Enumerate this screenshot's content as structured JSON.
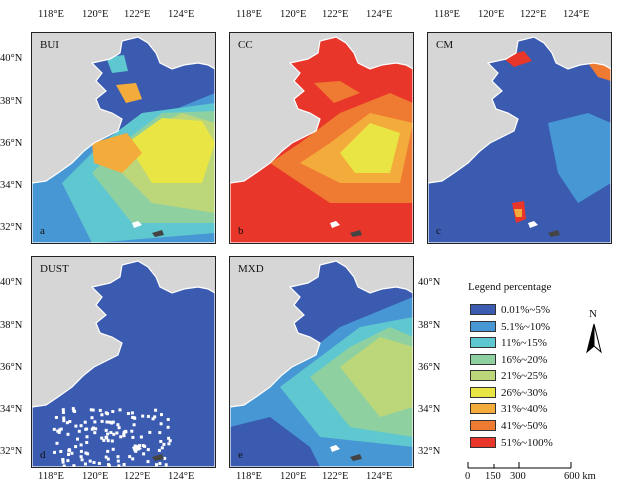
{
  "panels": [
    {
      "title": "BUI",
      "letter": "a",
      "scheme": "bui"
    },
    {
      "title": "CC",
      "letter": "b",
      "scheme": "cc"
    },
    {
      "title": "CM",
      "letter": "c",
      "scheme": "cm"
    },
    {
      "title": "DUST",
      "letter": "d",
      "scheme": "dust"
    },
    {
      "title": "MXD",
      "letter": "e",
      "scheme": "mxd"
    }
  ],
  "lon_ticks": [
    "118°E",
    "120°E",
    "122°E",
    "124°E"
  ],
  "lat_ticks": [
    "40°N",
    "38°N",
    "36°N",
    "34°N",
    "32°N"
  ],
  "legend": {
    "title": "Legend percentage",
    "classes": [
      {
        "label": "0.01%~5%",
        "color": "#3a5bb0"
      },
      {
        "label": "5.1%~10%",
        "color": "#4797d4"
      },
      {
        "label": "11%~15%",
        "color": "#5ec7d0"
      },
      {
        "label": "16%~20%",
        "color": "#8fd0a0"
      },
      {
        "label": "21%~25%",
        "color": "#bcd77a"
      },
      {
        "label": "26%~30%",
        "color": "#e8e544"
      },
      {
        "label": "31%~40%",
        "color": "#f3ab3b"
      },
      {
        "label": "41%~50%",
        "color": "#ef7a31"
      },
      {
        "label": "51%~100%",
        "color": "#e8362a"
      }
    ]
  },
  "north_label": "N",
  "scale_bar": {
    "ticks": [
      "0",
      "150",
      "300",
      "600 km"
    ]
  },
  "colors": {
    "land": "#d6d6d6",
    "coast": "#ffffff"
  }
}
